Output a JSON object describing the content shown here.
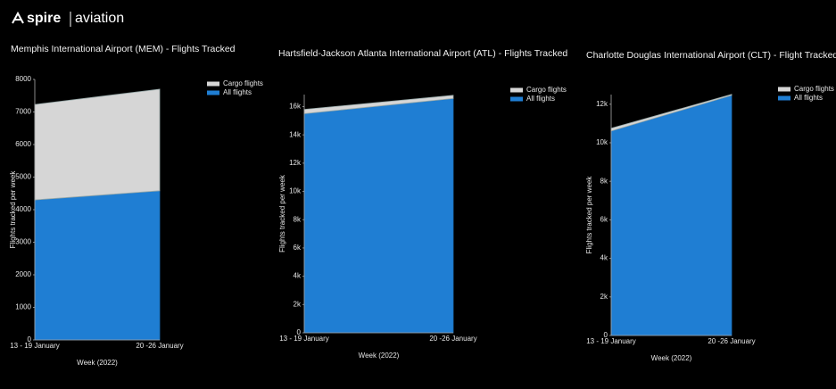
{
  "header": {
    "brand": "spire",
    "product": "aviation"
  },
  "chart_data": [
    {
      "type": "area",
      "stacked": true,
      "title": "Memphis International Airport (MEM) - Flights Tracked",
      "x_label": "Week (2022)",
      "y_label": "Flights tracked per week",
      "categories": [
        "13 - 19 January",
        "20 -26 January"
      ],
      "series": [
        {
          "name": "All flights",
          "color": "#1f7ed3",
          "values": [
            4300,
            4580
          ]
        },
        {
          "name": "Cargo flights",
          "color": "#d6d6d6",
          "values": [
            2930,
            3120
          ]
        }
      ],
      "ylim": [
        0,
        8000
      ],
      "yticks": [
        0,
        1000,
        2000,
        3000,
        4000,
        5000,
        6000,
        7000,
        8000
      ]
    },
    {
      "type": "area",
      "stacked": true,
      "title": "Hartsfield-Jackson Atlanta International Airport (ATL) - Flights Tracked",
      "x_label": "Week (2022)",
      "y_label": "Flights tracked per week",
      "categories": [
        "13 - 19 January",
        "20 -26 January"
      ],
      "series": [
        {
          "name": "All flights",
          "color": "#1f7ed3",
          "values": [
            15500,
            16570
          ]
        },
        {
          "name": "Cargo flights",
          "color": "#d6d6d6",
          "values": [
            300,
            230
          ]
        }
      ],
      "ylim": [
        0,
        16850
      ],
      "yticks": [
        0,
        {
          "value": 2000,
          "label": "2k"
        },
        {
          "value": 4000,
          "label": "4k"
        },
        {
          "value": 6000,
          "label": "6k"
        },
        {
          "value": 8000,
          "label": "8k"
        },
        {
          "value": 10000,
          "label": "10k"
        },
        {
          "value": 12000,
          "label": "12k"
        },
        {
          "value": 14000,
          "label": "14k"
        },
        {
          "value": 16000,
          "label": "16k"
        }
      ]
    },
    {
      "type": "area",
      "stacked": true,
      "title": "Charlotte Douglas International Airport (CLT) - Flight Tracked",
      "x_label": "Week (2022)",
      "y_label": "Flights tracked per week",
      "categories": [
        "13 - 19 January",
        "20 -26 January"
      ],
      "series": [
        {
          "name": "All flights",
          "color": "#1f7ed3",
          "values": [
            10610,
            12460
          ]
        },
        {
          "name": "Cargo flights",
          "color": "#d6d6d6",
          "values": [
            140,
            50
          ]
        }
      ],
      "ylim": [
        0,
        12500
      ],
      "yticks": [
        0,
        {
          "value": 2000,
          "label": "2k"
        },
        {
          "value": 4000,
          "label": "4k"
        },
        {
          "value": 6000,
          "label": "6k"
        },
        {
          "value": 8000,
          "label": "8k"
        },
        {
          "value": 10000,
          "label": "10k"
        },
        {
          "value": 12000,
          "label": "12k"
        }
      ]
    }
  ]
}
